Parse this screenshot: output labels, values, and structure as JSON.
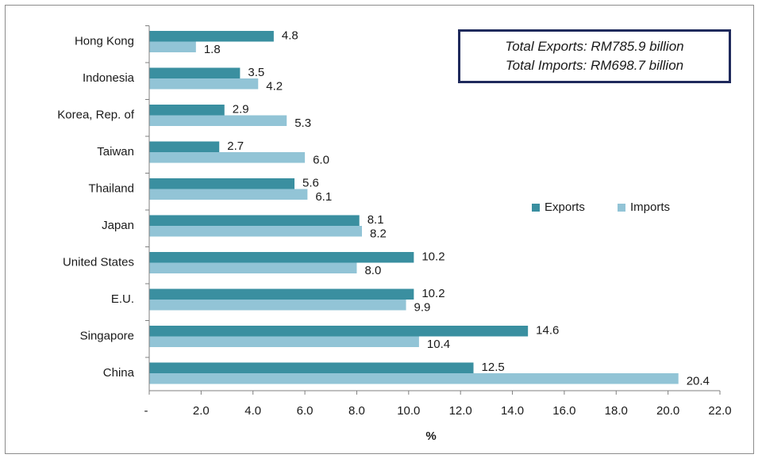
{
  "chart_data": {
    "type": "bar",
    "orientation": "horizontal",
    "categories": [
      "Hong Kong",
      "Indonesia",
      "Korea, Rep. of",
      "Taiwan",
      "Thailand",
      "Japan",
      "United States",
      "E.U.",
      "Singapore",
      "China"
    ],
    "series": [
      {
        "name": "Exports",
        "color": "#3a8fa0",
        "values": [
          4.8,
          3.5,
          2.9,
          2.7,
          5.6,
          8.1,
          10.2,
          10.2,
          14.6,
          12.5
        ],
        "labels": [
          "4.8",
          "3.5",
          "2.9",
          "2.7",
          "5.6",
          "8.1",
          "10.2",
          "10.2",
          "14.6",
          "12.5"
        ]
      },
      {
        "name": "Imports",
        "color": "#92c4d6",
        "values": [
          1.8,
          4.2,
          5.3,
          6.0,
          6.1,
          8.2,
          8.0,
          9.9,
          10.4,
          20.4
        ],
        "labels": [
          "1.8",
          "4.2",
          "5.3",
          "6.0",
          "6.1",
          "8.2",
          "8.0",
          "9.9",
          "10.4",
          "20.4"
        ]
      }
    ],
    "xlabel": "%",
    "xlim": [
      0,
      22
    ],
    "xticks": [
      "-",
      "2.0",
      "4.0",
      "6.0",
      "8.0",
      "10.0",
      "12.0",
      "14.0",
      "16.0",
      "18.0",
      "20.0",
      "22.0"
    ],
    "grid": false,
    "legend_position": "right",
    "annotations": [
      "Total Exports: RM785.9 billion",
      "Total Imports: RM698.7 billion"
    ]
  }
}
